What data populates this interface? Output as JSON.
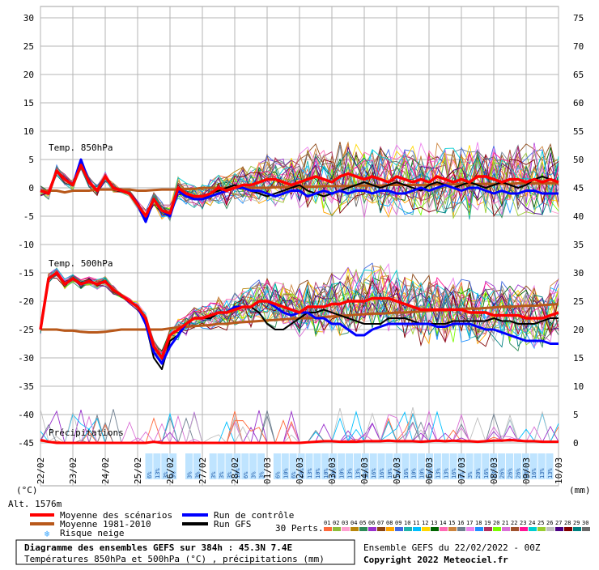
{
  "chart_data": {
    "type": "line",
    "title": "Diagramme des ensembles GEFS sur 384h : 45.3N 7.4E",
    "subtitle": "Températures 850hPa et 500hPa (°C) , précipitations (mm)",
    "left_axis_unit": "(°C)",
    "right_axis_unit": "(mm)",
    "left_ticks": [
      30,
      25,
      20,
      15,
      10,
      5,
      0,
      -5,
      -10,
      -15,
      -20,
      -25,
      -30,
      -35,
      -40,
      -45
    ],
    "right_ticks": [
      75,
      70,
      65,
      60,
      55,
      50,
      45,
      40,
      35,
      30,
      25,
      20,
      15,
      10,
      5,
      0
    ],
    "ylim_left": [
      -45,
      30
    ],
    "ylim_right": [
      0,
      75
    ],
    "date_labels": [
      "22/02",
      "23/02",
      "24/02",
      "25/02",
      "26/02",
      "27/02",
      "28/02",
      "01/03",
      "02/03",
      "03/03",
      "04/03",
      "05/03",
      "06/03",
      "07/03",
      "08/03",
      "09/03",
      "10/03"
    ],
    "panel_labels": {
      "t850": "Temp. 850hPa",
      "t500": "Temp. 500hPa",
      "precip": "Précipitations"
    },
    "altitude": "Alt. 1576m",
    "snow_risk_pct": [
      "6%",
      "13%",
      "3%",
      "3%",
      "",
      "3%",
      "3%",
      "",
      "3%",
      "3%",
      "3%",
      "10%",
      "6%",
      "3%",
      "3%",
      "",
      "6%",
      "10%",
      "6%",
      "10%",
      "13%",
      "10%",
      "10%",
      "10%",
      "10%",
      "13%",
      "13%",
      "13%",
      "16%",
      "16%",
      "10%",
      "10%",
      "16%",
      "10%",
      "10%",
      "10%",
      "13%",
      "13%",
      "16%",
      "6%",
      "3%",
      "20%",
      "16%",
      "13%",
      "26%",
      "26%",
      "26%",
      "23%",
      "16%",
      "13%",
      "13%"
    ],
    "x_steps_6h": 65,
    "series": [
      {
        "name": "Moyenne des scénarios",
        "color": "#ff0000",
        "group": "t850",
        "values": [
          -0.5,
          -1,
          3,
          1.5,
          0.5,
          4,
          1,
          -0.5,
          2,
          0,
          -0.5,
          -1,
          -3,
          -5,
          -2,
          -4,
          -4.5,
          0,
          -1,
          -1.5,
          -1.5,
          -1,
          0,
          -0.5,
          0,
          0.5,
          0.5,
          1,
          1.5,
          1.5,
          1,
          0.5,
          1,
          1.5,
          2,
          1.5,
          1,
          2,
          2.5,
          2,
          1.5,
          2,
          1.5,
          1,
          2,
          1.5,
          1,
          1.5,
          1,
          2,
          1.5,
          1,
          1.5,
          1,
          2,
          2,
          1.5,
          1,
          1.5,
          1.5,
          1,
          1.5,
          1,
          1.5,
          1
        ]
      },
      {
        "name": "Moyenne 1981-2010",
        "color": "#b8581a",
        "group": "t850",
        "values": [
          -0.5,
          -0.5,
          -0.5,
          -0.8,
          -0.5,
          -0.5,
          -0.5,
          -0.3,
          -0.3,
          -0.3,
          -0.3,
          -0.3,
          -0.5,
          -0.5,
          -0.4,
          -0.3,
          -0.3,
          -0.3,
          -0.2,
          -0.2,
          0,
          0,
          0,
          0,
          0,
          0,
          0,
          0,
          0,
          0.1,
          0.1,
          0.1,
          0.2,
          0.2,
          0.2,
          0.3,
          0.3,
          0.3,
          0.3,
          0.4,
          0.4,
          0.4,
          0.4,
          0.5,
          0.5,
          0.5,
          0.5,
          0.5,
          0.5,
          0.6,
          0.6,
          0.6,
          0.6,
          0.6,
          0.7,
          0.7,
          0.7,
          0.7,
          0.7,
          0.8,
          0.8,
          0.8,
          0.8,
          0.8,
          0.8
        ]
      },
      {
        "name": "Run de contrôle",
        "color": "#0000ff",
        "group": "t850",
        "values": [
          -0.5,
          -1,
          3,
          1.5,
          0.5,
          5,
          1,
          -0.5,
          2,
          0,
          -0.5,
          -1,
          -3,
          -6,
          -2,
          -4,
          -5,
          -0.5,
          -1.5,
          -2,
          -2,
          -1.5,
          -1,
          -0.5,
          0,
          0,
          -0.5,
          -0.5,
          -1,
          -1.5,
          -1,
          -0.5,
          -0.5,
          -1.5,
          -1,
          -0.5,
          -1,
          -0.5,
          -1,
          -0.5,
          -0.5,
          -1,
          -0.5,
          -0.5,
          -1,
          -1,
          -0.5,
          0,
          -0.5,
          0,
          0.5,
          0,
          -0.5,
          0,
          0,
          -0.5,
          -1,
          -0.5,
          -1,
          -1,
          -0.5,
          -0.5,
          -1,
          -1,
          -1
        ]
      },
      {
        "name": "Run GFS",
        "color": "#000000",
        "group": "t850",
        "values": [
          -0.5,
          -1,
          3,
          1.5,
          0.5,
          5,
          1,
          -0.5,
          2,
          0,
          -0.5,
          -1,
          -3,
          -6,
          -2,
          -4,
          -4.5,
          0,
          -1,
          -2,
          -2,
          -1,
          -0.5,
          0,
          0.5,
          0,
          -0.5,
          -1,
          -1.5,
          -1,
          -0.5,
          0,
          0.5,
          -0.5,
          -1,
          -1.5,
          -1,
          -0.5,
          0,
          0.5,
          1,
          0.5,
          0,
          0.5,
          1,
          0.5,
          0,
          -0.5,
          0.5,
          1,
          0.5,
          0,
          0.5,
          1,
          0.5,
          0,
          0.5,
          1,
          0.5,
          0,
          0.5,
          1.5,
          2,
          1.5,
          1
        ]
      },
      {
        "name": "Moyenne des scénarios",
        "color": "#ff0000",
        "group": "t500",
        "values": [
          -25,
          -16,
          -15,
          -17,
          -16,
          -17,
          -16.5,
          -17,
          -16.5,
          -18,
          -19,
          -20,
          -21,
          -23,
          -28,
          -30,
          -26,
          -25,
          -24,
          -23,
          -23,
          -22.5,
          -22,
          -22,
          -21.5,
          -21,
          -21,
          -20,
          -20,
          -20.5,
          -21,
          -21.5,
          -22,
          -21,
          -21,
          -21,
          -20.5,
          -20.5,
          -20,
          -20,
          -20,
          -19.5,
          -19.5,
          -19.5,
          -20,
          -20.5,
          -21,
          -21.5,
          -21.5,
          -21.5,
          -21.5,
          -21.5,
          -21.5,
          -22,
          -22,
          -22,
          -22.5,
          -22.5,
          -22.5,
          -22.5,
          -23,
          -23,
          -23,
          -22.5,
          -22
        ]
      },
      {
        "name": "Moyenne 1981-2010",
        "color": "#b8581a",
        "group": "t500",
        "values": [
          -25,
          -25,
          -25,
          -25.2,
          -25.2,
          -25.4,
          -25.5,
          -25.5,
          -25.4,
          -25.2,
          -25,
          -25,
          -25,
          -25,
          -25,
          -25,
          -24.8,
          -24.6,
          -24.5,
          -24.4,
          -24.3,
          -24.2,
          -24,
          -24,
          -23.8,
          -23.7,
          -23.6,
          -23.5,
          -23.4,
          -23.3,
          -23.2,
          -23.1,
          -23,
          -23,
          -22.9,
          -22.8,
          -22.7,
          -22.6,
          -22.5,
          -22.4,
          -22.3,
          -22.2,
          -22.2,
          -22.1,
          -22,
          -22,
          -21.9,
          -21.8,
          -21.7,
          -21.6,
          -21.6,
          -21.5,
          -21.4,
          -21.3,
          -21.3,
          -21.2,
          -21.1,
          -21,
          -21,
          -20.9,
          -20.8,
          -20.8,
          -20.7,
          -20.6,
          -20.5
        ]
      },
      {
        "name": "Run de contrôle",
        "color": "#0000ff",
        "group": "t500",
        "values": [
          -25,
          -16,
          -15,
          -17,
          -16,
          -17,
          -16.5,
          -17,
          -16.5,
          -18,
          -19,
          -20,
          -21,
          -24,
          -29,
          -31,
          -28,
          -26,
          -24,
          -23,
          -23,
          -22.5,
          -22,
          -22,
          -21,
          -21,
          -21,
          -20,
          -20,
          -21,
          -22,
          -22.5,
          -22,
          -22,
          -23,
          -23,
          -24,
          -24,
          -25,
          -26,
          -26,
          -25,
          -24.5,
          -24,
          -24,
          -24,
          -24,
          -24,
          -24,
          -24.5,
          -24.5,
          -24,
          -24,
          -24,
          -24.5,
          -25,
          -25,
          -25.5,
          -26,
          -26.5,
          -27,
          -27,
          -27,
          -27.5,
          -27.5
        ]
      },
      {
        "name": "Run GFS",
        "color": "#000000",
        "group": "t500",
        "values": [
          -25,
          -16,
          -15,
          -17,
          -16,
          -17,
          -16.5,
          -17,
          -16.5,
          -18,
          -19,
          -20,
          -21,
          -24,
          -30,
          -32,
          -27,
          -26,
          -24,
          -23,
          -23,
          -23,
          -22,
          -22,
          -21,
          -21,
          -21,
          -22,
          -24,
          -25,
          -25,
          -24,
          -23,
          -22,
          -22,
          -21.5,
          -22,
          -22.5,
          -23,
          -23.5,
          -24,
          -24,
          -24,
          -23,
          -23,
          -23,
          -23.5,
          -24,
          -24,
          -24,
          -24,
          -23.5,
          -23.5,
          -23.5,
          -23.5,
          -23.5,
          -23,
          -23.5,
          -23.5,
          -24,
          -24,
          -24,
          -23.5,
          -23,
          -23
        ]
      }
    ],
    "precip_mean_mm": [
      0.5,
      0.2,
      0,
      0,
      0,
      0,
      0,
      0,
      0,
      0,
      0,
      0,
      0,
      0,
      0.2,
      0,
      0,
      0,
      0,
      0,
      0,
      0,
      0,
      0,
      0,
      0,
      0,
      0,
      0,
      0,
      0,
      0,
      0,
      0.1,
      0.2,
      0.3,
      0.3,
      0.2,
      0.2,
      0.2,
      0.3,
      0.3,
      0.3,
      0.4,
      0.3,
      0.3,
      0.3,
      0.2,
      0.3,
      0.4,
      0.3,
      0.4,
      0.3,
      0.3,
      0.2,
      0.3,
      0.4,
      0.4,
      0.5,
      0.4,
      0.3,
      0.3,
      0.2,
      0.2,
      0.2
    ]
  },
  "legend": {
    "mean_label": "Moyenne des scénarios",
    "mean_color": "#ff0000",
    "clim_label": "Moyenne 1981-2010",
    "clim_color": "#b8581a",
    "control_label": "Run de contrôle",
    "control_color": "#0000ff",
    "gfs_label": "Run GFS",
    "gfs_color": "#000000",
    "snow_label": "Risque neige",
    "perts_label": "30 Perts.",
    "pert_numbers": [
      "01",
      "02",
      "03",
      "04",
      "05",
      "06",
      "07",
      "08",
      "09",
      "10",
      "11",
      "12",
      "13",
      "14",
      "15",
      "16",
      "17",
      "18",
      "19",
      "20",
      "21",
      "22",
      "23",
      "24",
      "25",
      "26",
      "27",
      "28",
      "29",
      "30"
    ],
    "pert_colors": [
      "#ff6a3c",
      "#8fbc3a",
      "#ff9fd0",
      "#b8860b",
      "#2e8b57",
      "#9932cc",
      "#8b4513",
      "#ffa500",
      "#4169e1",
      "#20b2aa",
      "#00bfff",
      "#ffd700",
      "#006400",
      "#ff69b4",
      "#cd853f",
      "#708090",
      "#ee82ee",
      "#1e90ff",
      "#b03060",
      "#7cfc00",
      "#da70d6",
      "#a0522d",
      "#ff1493",
      "#00ced1",
      "#9acd32",
      "#c0c0c0",
      "#4b0082",
      "#800000",
      "#008080",
      "#696969"
    ]
  },
  "footer": {
    "title": "Diagramme des ensembles GEFS sur 384h : 45.3N 7.4E",
    "subtitle": "Températures 850hPa et 500hPa (°C) , précipitations (mm)",
    "run": "Ensemble GEFS du 22/02/2022 - 00Z",
    "copyright": "Copyright 2022 Meteociel.fr"
  }
}
